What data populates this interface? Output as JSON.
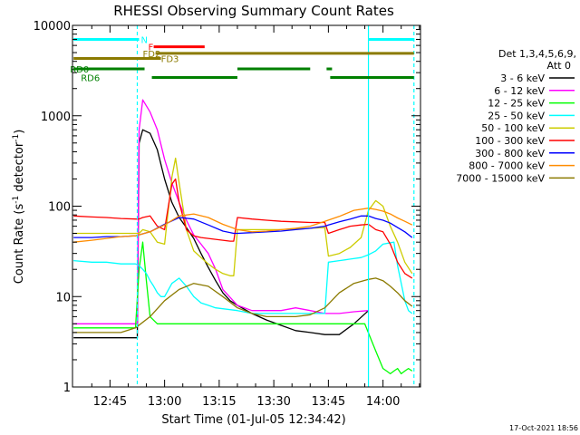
{
  "chart_data": {
    "type": "line",
    "title": "RHESSI Observing Summary Count Rates",
    "xlabel": "Start Time (01-Jul-05 12:34:42)",
    "ylabel_prefix": "Count Rate (s",
    "ylabel_sup1": "-1",
    "ylabel_mid": " detector",
    "ylabel_sup2": "-1",
    "ylabel_suffix": ")",
    "yscale": "log",
    "ylim": [
      1,
      10000
    ],
    "xlim": [
      34.7,
      130.3
    ],
    "xunit": "minutes after 12:00",
    "x_ticks": [
      {
        "value": 45,
        "label": "12:45"
      },
      {
        "value": 60,
        "label": "13:00"
      },
      {
        "value": 75,
        "label": "13:15"
      },
      {
        "value": 90,
        "label": "13:30"
      },
      {
        "value": 105,
        "label": "13:45"
      },
      {
        "value": 120,
        "label": "14:00"
      }
    ],
    "y_ticks": [
      {
        "value": 1,
        "label": "1"
      },
      {
        "value": 10,
        "label": "10"
      },
      {
        "value": 100,
        "label": "100"
      },
      {
        "value": 1000,
        "label": "1000"
      },
      {
        "value": 10000,
        "label": "10000"
      }
    ],
    "legend": {
      "header1": "Det 1,3,4,5,6,9,",
      "header2": "Att 0",
      "placement": "right"
    },
    "series": [
      {
        "name": "3 - 6 keV",
        "color": "#000000",
        "x": [
          35,
          50,
          52.5,
          53,
          54,
          56,
          58,
          60,
          62,
          64,
          66,
          68,
          70,
          72,
          74,
          76,
          78,
          80,
          84,
          88,
          92,
          96,
          100,
          104,
          108,
          112,
          116
        ],
        "y": [
          3.5,
          3.5,
          3.5,
          500,
          700,
          640,
          420,
          200,
          110,
          75,
          58,
          44,
          30,
          21,
          15,
          11,
          9,
          8,
          6.5,
          5.5,
          4.8,
          4.2,
          4,
          3.8,
          3.8,
          5,
          7
        ]
      },
      {
        "name": "6 - 12 keV",
        "color": "#ff00ff",
        "x": [
          35,
          50,
          52.5,
          53,
          54,
          56,
          58,
          60,
          62,
          64,
          66,
          68,
          70,
          72,
          74,
          76,
          80,
          84,
          88,
          92,
          96,
          100,
          104,
          108,
          112,
          116
        ],
        "y": [
          5,
          5,
          5,
          700,
          1500,
          1100,
          700,
          330,
          180,
          110,
          70,
          48,
          38,
          30,
          20,
          12,
          8,
          7,
          7,
          7,
          7.5,
          7,
          6.5,
          6.5,
          6.8,
          7
        ]
      },
      {
        "name": "12 - 25 keV",
        "color": "#00ff00",
        "x": [
          35,
          36,
          48,
          52,
          53,
          54,
          55,
          56,
          58,
          60,
          70,
          80,
          90,
          100,
          104,
          106,
          110,
          115,
          118,
          120,
          121,
          122,
          123,
          124,
          125,
          126,
          127,
          128
        ],
        "y": [
          4.5,
          4.5,
          4.5,
          4.5,
          20,
          40,
          15,
          6,
          5,
          5,
          5,
          5,
          5,
          5,
          5,
          5,
          5,
          5,
          2.5,
          1.6,
          1.5,
          1.4,
          1.5,
          1.6,
          1.4,
          1.5,
          1.6,
          1.5
        ]
      },
      {
        "name": "25 - 50 keV",
        "color": "#00ffff",
        "x": [
          35,
          40,
          44,
          48,
          52,
          53,
          54,
          55,
          56,
          57,
          58,
          59,
          60,
          62,
          64,
          66,
          68,
          70,
          72,
          74,
          80,
          84,
          88,
          92,
          96,
          100,
          104,
          105,
          108,
          111,
          114,
          116,
          118,
          120,
          123,
          124,
          126,
          127,
          128
        ],
        "y": [
          25,
          24,
          24,
          23,
          23,
          22,
          20,
          18,
          15,
          13,
          11,
          10,
          10,
          14,
          16,
          13,
          10,
          8.5,
          8,
          7.5,
          7,
          6.5,
          6.5,
          6.5,
          6.5,
          6.5,
          6.5,
          24,
          25,
          26,
          27,
          29,
          32,
          38,
          40,
          22,
          9,
          7,
          6.5
        ]
      },
      {
        "name": "50 - 100 keV",
        "color": "#cccc00",
        "x": [
          35,
          40,
          44,
          48,
          52,
          53,
          54,
          56,
          58,
          60,
          62,
          63,
          64,
          66,
          68,
          70,
          72,
          74,
          76,
          78,
          79,
          80,
          84,
          88,
          92,
          96,
          100,
          104,
          105,
          108,
          111,
          114,
          116,
          118,
          120,
          122,
          124,
          126,
          128
        ],
        "y": [
          50,
          50,
          50,
          50,
          50,
          50,
          55,
          52,
          40,
          38,
          210,
          340,
          180,
          55,
          32,
          27,
          23,
          20,
          18,
          17,
          17,
          55,
          55,
          55,
          55,
          56,
          57,
          58,
          28,
          30,
          35,
          45,
          90,
          115,
          100,
          60,
          40,
          24,
          18
        ]
      },
      {
        "name": "100 - 300 keV",
        "color": "#ff0000",
        "x": [
          35,
          40,
          44,
          48,
          52,
          53,
          54,
          56,
          58,
          60,
          62,
          63,
          64,
          66,
          68,
          70,
          72,
          74,
          76,
          78,
          79,
          80,
          84,
          88,
          92,
          96,
          100,
          104,
          105,
          108,
          111,
          114,
          116,
          118,
          120,
          122,
          124,
          126,
          128
        ],
        "y": [
          78,
          76,
          75,
          73,
          72,
          72,
          75,
          78,
          60,
          55,
          175,
          200,
          110,
          55,
          47,
          45,
          44,
          43,
          42,
          41,
          41,
          75,
          72,
          70,
          68,
          67,
          66,
          66,
          50,
          55,
          60,
          62,
          63,
          55,
          52,
          38,
          24,
          18,
          16
        ]
      },
      {
        "name": "300 - 800 keV",
        "color": "#0000ff",
        "x": [
          35,
          40,
          44,
          48,
          52,
          56,
          60,
          64,
          68,
          72,
          76,
          79,
          80,
          84,
          88,
          92,
          96,
          100,
          104,
          105,
          108,
          111,
          114,
          116,
          118,
          120,
          122,
          124,
          126,
          128
        ],
        "y": [
          45,
          45,
          46,
          46,
          47,
          52,
          63,
          75,
          72,
          62,
          53,
          50,
          50,
          51,
          52,
          53,
          55,
          57,
          60,
          62,
          67,
          72,
          78,
          78,
          73,
          70,
          65,
          58,
          52,
          45
        ]
      },
      {
        "name": "800 - 7000 keV",
        "color": "#ff8c00",
        "x": [
          35,
          40,
          44,
          48,
          52,
          56,
          60,
          64,
          68,
          72,
          76,
          80,
          84,
          88,
          92,
          96,
          100,
          104,
          108,
          112,
          116,
          118,
          120,
          122,
          124,
          126,
          128
        ],
        "y": [
          40,
          42,
          44,
          46,
          47,
          52,
          62,
          78,
          82,
          75,
          63,
          55,
          52,
          53,
          55,
          57,
          60,
          68,
          77,
          90,
          95,
          92,
          88,
          82,
          74,
          68,
          62
        ]
      },
      {
        "name": "7000 - 15000 keV",
        "color": "#8b7a00",
        "x": [
          35,
          40,
          44,
          48,
          52,
          56,
          60,
          64,
          68,
          72,
          76,
          80,
          84,
          88,
          92,
          96,
          100,
          104,
          108,
          112,
          116,
          118,
          120,
          122,
          124,
          126,
          128
        ],
        "y": [
          4,
          4,
          4,
          4,
          4.5,
          6,
          9,
          12,
          14,
          13,
          10,
          7.5,
          6.5,
          6,
          6,
          6,
          6.3,
          7.5,
          11,
          14,
          15.5,
          16,
          15,
          13,
          11,
          9,
          7.8
        ]
      }
    ],
    "vlines": [
      {
        "x": 52.5,
        "color": "#00ffff",
        "style": "dashed"
      },
      {
        "x": 116,
        "color": "#00ffff",
        "style": "solid"
      },
      {
        "x": 128.5,
        "color": "#00ffff",
        "style": "dashed"
      }
    ],
    "state_bars": [
      {
        "label": "N",
        "label_color": "#00ffff",
        "label_x": 53.5,
        "y": 7000,
        "color": "#00ffff",
        "segments": [
          [
            35,
            53
          ],
          [
            116,
            128.5
          ]
        ]
      },
      {
        "label": "F",
        "label_color": "#ff0000",
        "label_x": 55.5,
        "y": 5800,
        "color": "#ff0000",
        "segments": [
          [
            57,
            71
          ]
        ]
      },
      {
        "label": "FD2",
        "label_color": "#8b7a00",
        "label_x": 54,
        "y": 4900,
        "color": "#8b7a00",
        "segments": [
          [
            57.5,
            128.5
          ]
        ]
      },
      {
        "label": "FD3",
        "label_color": "#8b7a00",
        "label_x": 59,
        "y": 4300,
        "color": "#8b7a00",
        "segments": [
          [
            35,
            59
          ]
        ]
      },
      {
        "label": "RD0",
        "label_color": "#008000",
        "label_x": 34,
        "y": 3300,
        "color": "#008000",
        "segments": [
          [
            35,
            54.5
          ],
          [
            80,
            100
          ],
          [
            104.5,
            106
          ]
        ]
      },
      {
        "label": "RD6",
        "label_color": "#008000",
        "label_x": 37,
        "y": 2650,
        "color": "#008000",
        "segments": [
          [
            56.5,
            80
          ],
          [
            105.5,
            128.5
          ]
        ]
      }
    ],
    "grid": false
  },
  "footer": {
    "timestamp": "17-Oct-2021 18:56"
  }
}
